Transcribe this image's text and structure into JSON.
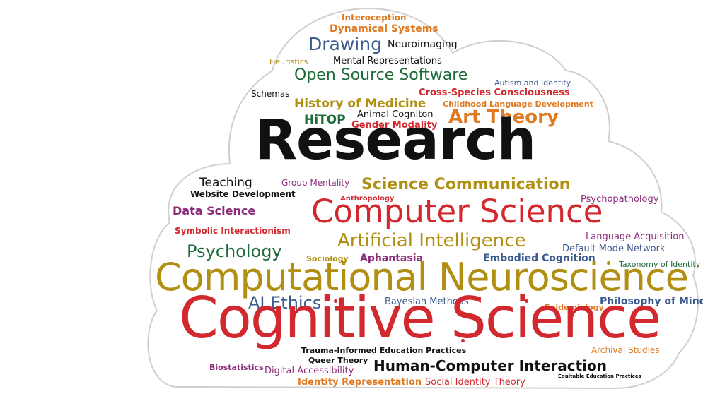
{
  "colors": {
    "red": "#d2292f",
    "gold": "#b08f12",
    "orange": "#e07a22",
    "green": "#1f6b3a",
    "navy": "#3b5a8e",
    "purple": "#8b2b7a",
    "black": "#111111",
    "cloud_outline": "#cfcfcf"
  },
  "words": [
    {
      "text": "Interoception",
      "color": "orange"
    },
    {
      "text": "Dynamical Systems",
      "color": "orange"
    },
    {
      "text": "Drawing",
      "color": "navy"
    },
    {
      "text": "Neuroimaging",
      "color": "black"
    },
    {
      "text": "Heuristics",
      "color": "gold"
    },
    {
      "text": "Mental Representations",
      "color": "black"
    },
    {
      "text": "Open Source Software",
      "color": "green"
    },
    {
      "text": "Autism and Identity",
      "color": "navy"
    },
    {
      "text": "Schemas",
      "color": "black"
    },
    {
      "text": "Cross-Species Consciousness",
      "color": "red"
    },
    {
      "text": "History of Medicine",
      "color": "gold"
    },
    {
      "text": "Childhood Language Development",
      "color": "orange"
    },
    {
      "text": "HiTOP",
      "color": "green"
    },
    {
      "text": "Animal Cogniton",
      "color": "black"
    },
    {
      "text": "Gender Modality",
      "color": "red"
    },
    {
      "text": "Art Theory",
      "color": "orange"
    },
    {
      "text": "Research",
      "color": "black"
    },
    {
      "text": "Teaching",
      "color": "black"
    },
    {
      "text": "Group Mentality",
      "color": "purple"
    },
    {
      "text": "Science Communication",
      "color": "gold"
    },
    {
      "text": "Website Development",
      "color": "black"
    },
    {
      "text": "Anthropology",
      "color": "red"
    },
    {
      "text": "Psychopathology",
      "color": "purple"
    },
    {
      "text": "Data Science",
      "color": "purple"
    },
    {
      "text": "Computer Science",
      "color": "red"
    },
    {
      "text": "Symbolic Interactionism",
      "color": "red"
    },
    {
      "text": "Language Acquisition",
      "color": "purple"
    },
    {
      "text": "Artificial Intelligence",
      "color": "gold"
    },
    {
      "text": "Default Mode Network",
      "color": "navy"
    },
    {
      "text": "Psychology",
      "color": "green"
    },
    {
      "text": "Sociology",
      "color": "gold"
    },
    {
      "text": "Aphantasia",
      "color": "purple"
    },
    {
      "text": "Embodied Cognition",
      "color": "navy"
    },
    {
      "text": "Taxonomy of Identity",
      "color": "green"
    },
    {
      "text": "Computational Neuroscience",
      "color": "gold"
    },
    {
      "text": "AI Ethics",
      "color": "navy"
    },
    {
      "text": "Bayesian Methods",
      "color": "navy"
    },
    {
      "text": "Epidemiology",
      "color": "orange"
    },
    {
      "text": "Philosophy of Mind",
      "color": "navy"
    },
    {
      "text": "Cognitive Science",
      "color": "red"
    },
    {
      "text": "Archival Studies",
      "color": "orange"
    },
    {
      "text": "Trauma-Informed Education Practices",
      "color": "black"
    },
    {
      "text": "Queer Theory",
      "color": "black"
    },
    {
      "text": "Human-Computer Interaction",
      "color": "black"
    },
    {
      "text": "Biostatistics",
      "color": "purple"
    },
    {
      "text": "Digital Accessibility",
      "color": "purple"
    },
    {
      "text": "Equitable Education Practices",
      "color": "black"
    },
    {
      "text": "Identity Representation",
      "color": "orange"
    },
    {
      "text": "Social Identity Theory",
      "color": "red"
    }
  ]
}
